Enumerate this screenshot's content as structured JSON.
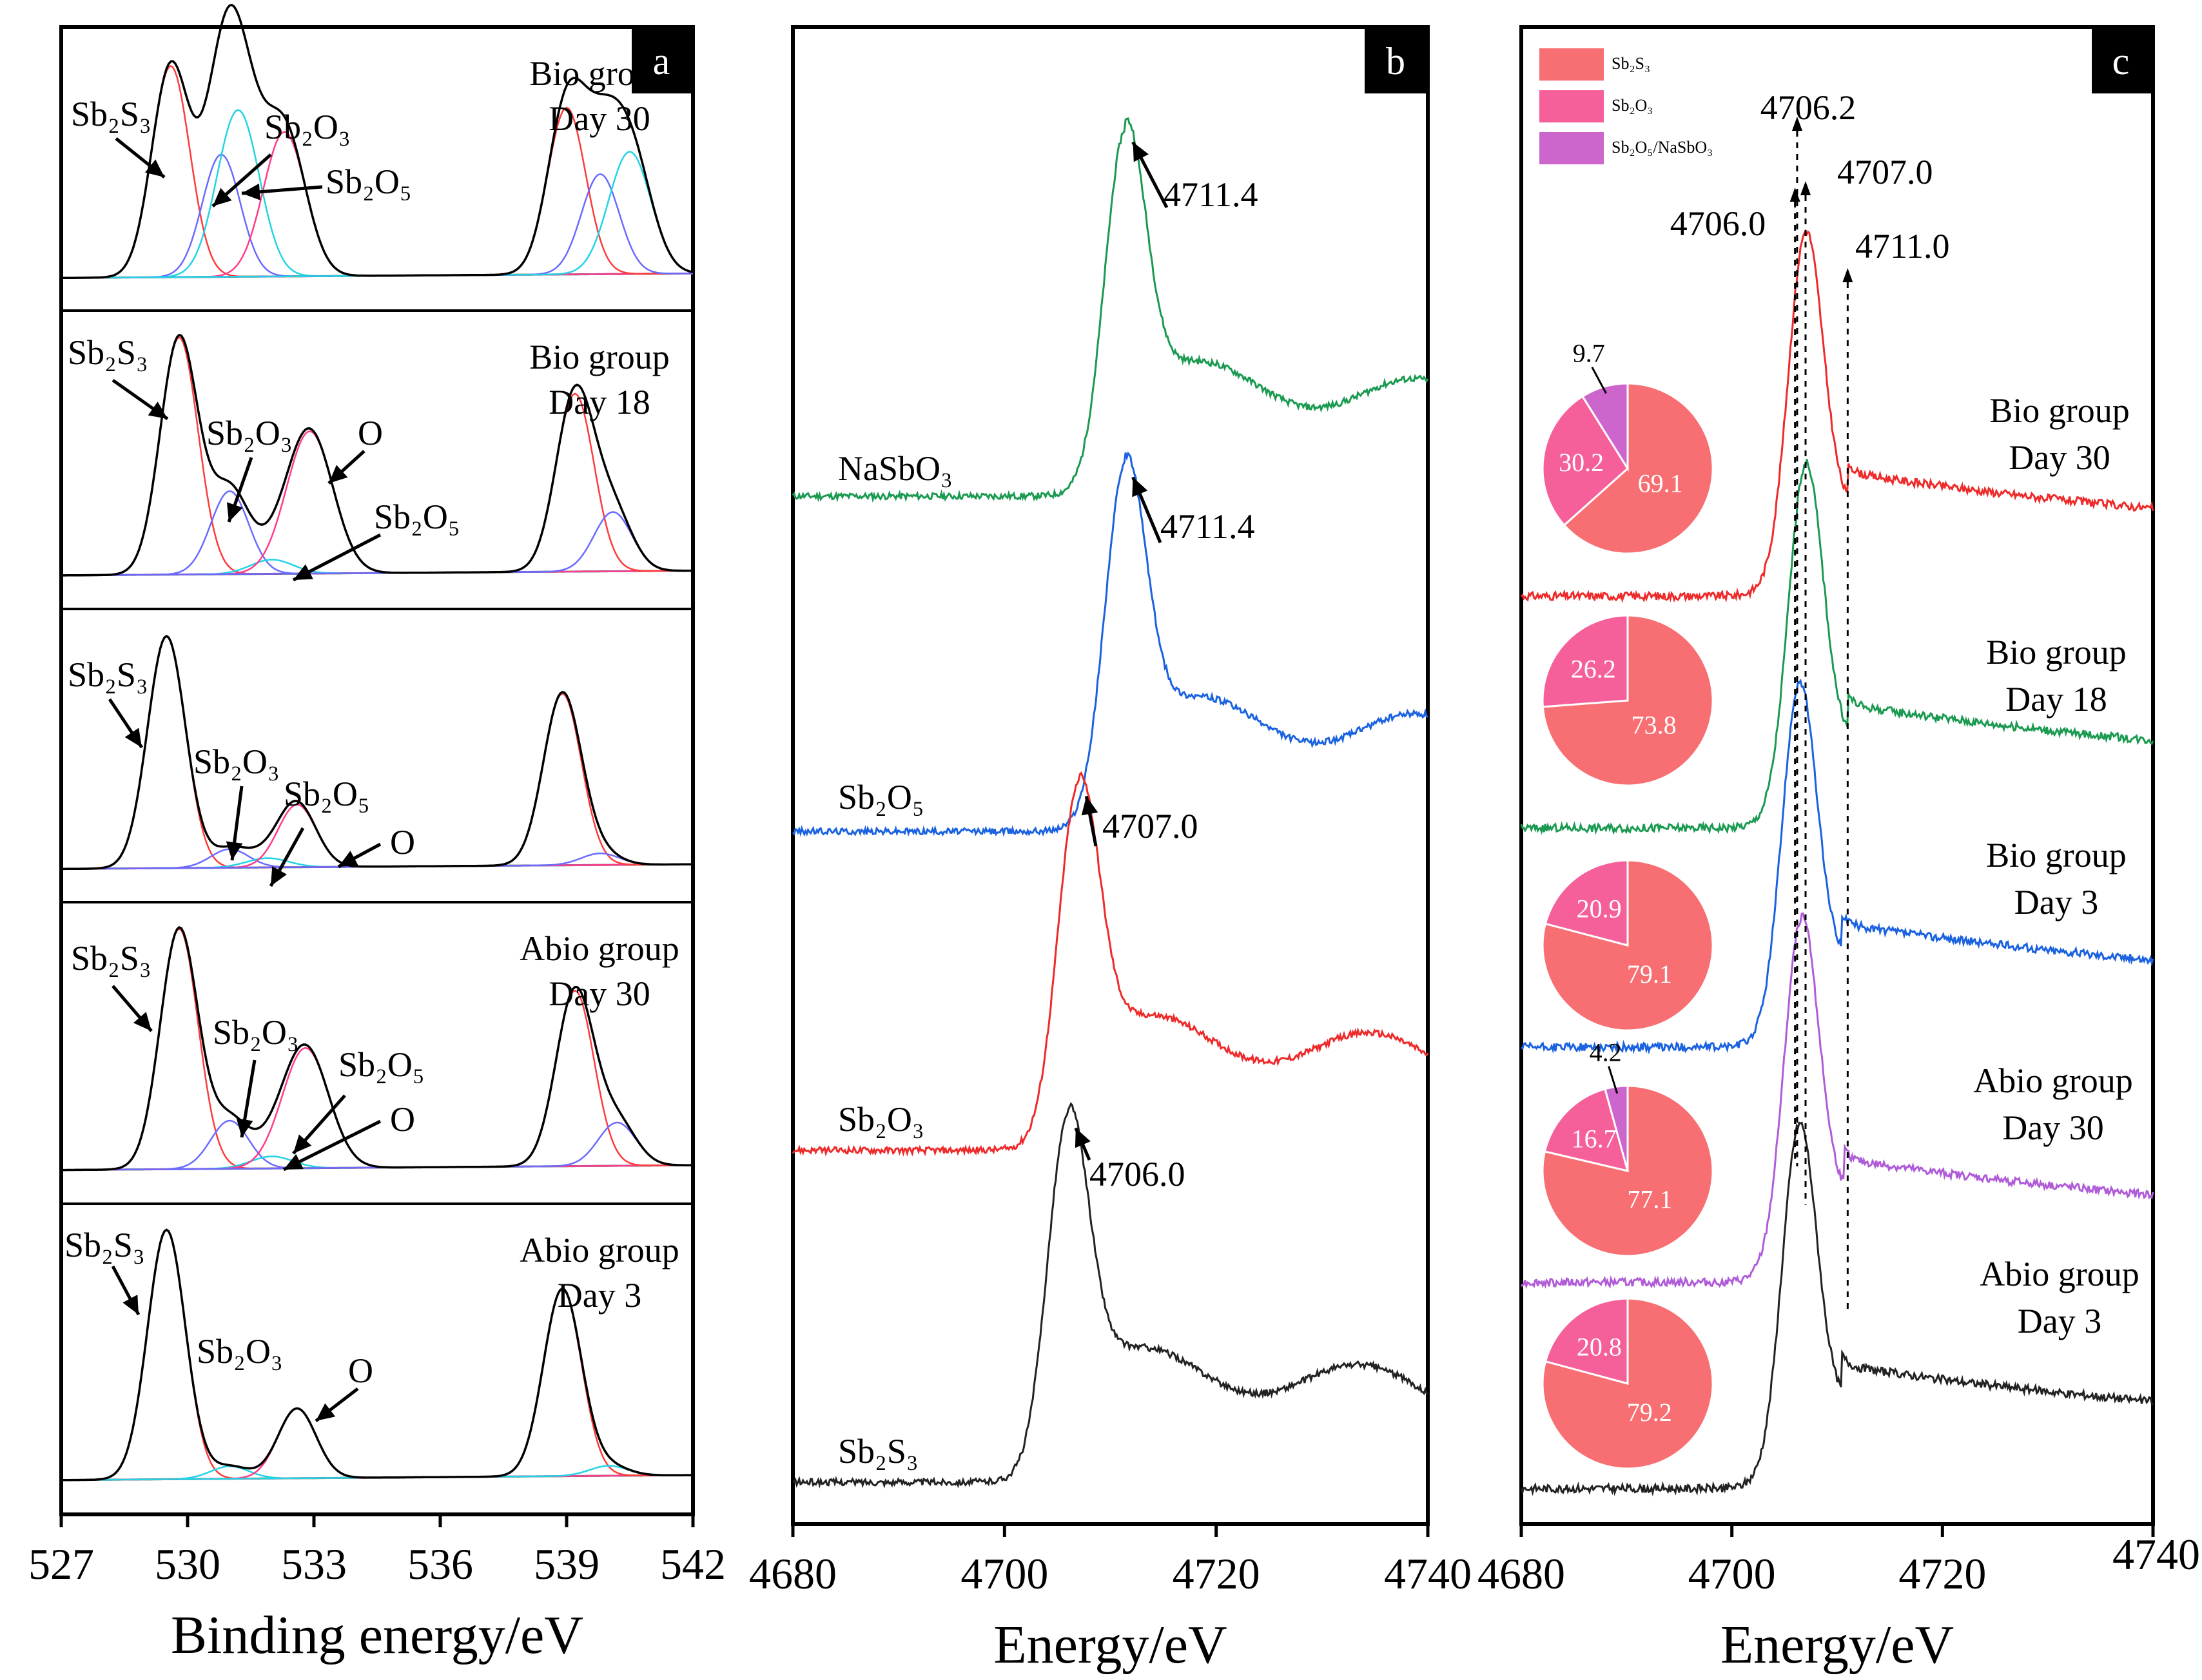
{
  "chart_data": [
    {
      "panel": "a",
      "type": "line",
      "xlabel": "Binding energy/eV",
      "xlim": [
        527,
        542
      ],
      "xticks": [
        "527",
        "530",
        "533",
        "536",
        "539",
        "542"
      ],
      "series": [
        {
          "name": "Bio group Day 30",
          "group_label": [
            "Bio group",
            "Day 30"
          ],
          "components": [
            {
              "name": "Sb2S3",
              "label": "Sb₂S₃",
              "center": 529.6,
              "amp": 0.95,
              "width": 0.45,
              "color": "#ff3b3b"
            },
            {
              "name": "Sb2O3",
              "label": "Sb₂O₃",
              "center": 530.8,
              "amp": 0.55,
              "width": 0.45,
              "color": "#6a6aff"
            },
            {
              "name": "Sb2O5",
              "label": "Sb₂O₅",
              "center": 531.2,
              "amp": 0.75,
              "width": 0.5,
              "color": "#22d3e6"
            },
            {
              "name": "O",
              "label": "O",
              "center": 532.3,
              "amp": 0.65,
              "width": 0.5,
              "color": "#ff3b8a"
            },
            {
              "name": "Sb2S3 3/2",
              "label": "",
              "center": 539.0,
              "amp": 0.75,
              "width": 0.45,
              "color": "#ff3b3b"
            },
            {
              "name": "Sb2O3 3/2",
              "label": "",
              "center": 539.8,
              "amp": 0.45,
              "width": 0.45,
              "color": "#6a6aff"
            },
            {
              "name": "Sb2O5 3/2",
              "label": "",
              "center": 540.5,
              "amp": 0.55,
              "width": 0.5,
              "color": "#22d3e6"
            }
          ],
          "annotations": [
            "Sb₂S₃",
            "Sb₂O₃",
            "Sb₂O₅"
          ]
        },
        {
          "name": "Bio group Day 18",
          "group_label": [
            "Bio group",
            "Day 18"
          ],
          "components": [
            {
              "name": "Sb2S3",
              "label": "Sb₂S₃",
              "center": 529.8,
              "amp": 1.0,
              "width": 0.45,
              "color": "#ff3b3b"
            },
            {
              "name": "Sb2O3",
              "label": "Sb₂O₃",
              "center": 531.0,
              "amp": 0.35,
              "width": 0.45,
              "color": "#6a6aff"
            },
            {
              "name": "Sb2O5",
              "label": "Sb₂O₅",
              "center": 532.0,
              "amp": 0.06,
              "width": 0.5,
              "color": "#22d3e6"
            },
            {
              "name": "O",
              "label": "O",
              "center": 532.9,
              "amp": 0.6,
              "width": 0.55,
              "color": "#ff3b8a"
            },
            {
              "name": "Sb2S3 3/2",
              "label": "",
              "center": 539.2,
              "amp": 0.75,
              "width": 0.45,
              "color": "#ff3b3b"
            },
            {
              "name": "Sb2O3 3/2",
              "label": "",
              "center": 540.1,
              "amp": 0.25,
              "width": 0.45,
              "color": "#6a6aff"
            }
          ],
          "annotations": [
            "Sb₂S₃",
            "Sb₂O₃",
            "O",
            "Sb₂O₅"
          ]
        },
        {
          "name": "Bio group Day 3",
          "group_label": [
            "",
            ""
          ],
          "components": [
            {
              "name": "Sb2S3",
              "label": "Sb₂S₃",
              "center": 529.5,
              "amp": 1.0,
              "width": 0.45,
              "color": "#ff3b3b"
            },
            {
              "name": "Sb2O3",
              "label": "Sb₂O₃",
              "center": 531.0,
              "amp": 0.08,
              "width": 0.45,
              "color": "#6a6aff"
            },
            {
              "name": "Sb2O5",
              "label": "Sb₂O₅",
              "center": 531.9,
              "amp": 0.04,
              "width": 0.5,
              "color": "#22d3e6"
            },
            {
              "name": "O",
              "label": "O",
              "center": 532.6,
              "amp": 0.27,
              "width": 0.45,
              "color": "#ff3b8a"
            },
            {
              "name": "Sb2S3 3/2",
              "label": "",
              "center": 538.9,
              "amp": 0.74,
              "width": 0.45,
              "color": "#ff3b3b"
            },
            {
              "name": "Sb2O3 3/2",
              "label": "",
              "center": 539.8,
              "amp": 0.05,
              "width": 0.45,
              "color": "#6a6aff"
            }
          ],
          "annotations": [
            "Sb₂S₃",
            "Sb₂O₃",
            "Sb₂O₅",
            "O"
          ]
        },
        {
          "name": "Abio group Day 30",
          "group_label": [
            "Abio group",
            "Day 30"
          ],
          "components": [
            {
              "name": "Sb2S3",
              "label": "Sb₂S₃",
              "center": 529.8,
              "amp": 1.0,
              "width": 0.45,
              "color": "#ff3b3b"
            },
            {
              "name": "Sb2O3",
              "label": "Sb₂O₃",
              "center": 531.0,
              "amp": 0.2,
              "width": 0.45,
              "color": "#6a6aff"
            },
            {
              "name": "Sb2O5",
              "label": "Sb₂O₅",
              "center": 532.0,
              "amp": 0.05,
              "width": 0.5,
              "color": "#22d3e6"
            },
            {
              "name": "O",
              "label": "O",
              "center": 532.8,
              "amp": 0.5,
              "width": 0.55,
              "color": "#ff3b8a"
            },
            {
              "name": "Sb2S3 3/2",
              "label": "",
              "center": 539.2,
              "amp": 0.73,
              "width": 0.45,
              "color": "#ff3b3b"
            },
            {
              "name": "Sb2O3 3/2",
              "label": "",
              "center": 540.2,
              "amp": 0.18,
              "width": 0.45,
              "color": "#6a6aff"
            }
          ],
          "annotations": [
            "Sb₂S₃",
            "Sb₂O₃",
            "Sb₂O₅",
            "O"
          ]
        },
        {
          "name": "Abio group Day 3",
          "group_label": [
            "Abio group",
            "Day 3"
          ],
          "components": [
            {
              "name": "Sb2S3",
              "label": "Sb₂S₃",
              "center": 529.5,
              "amp": 1.0,
              "width": 0.45,
              "color": "#ff3b3b"
            },
            {
              "name": "Sb2O3",
              "label": "Sb₂O₃",
              "center": 531.0,
              "amp": 0.05,
              "width": 0.45,
              "color": "#22d3e6"
            },
            {
              "name": "O",
              "label": "O",
              "center": 532.6,
              "amp": 0.28,
              "width": 0.45,
              "color": "#ff3b8a"
            },
            {
              "name": "Sb2S3 3/2",
              "label": "",
              "center": 538.9,
              "amp": 0.75,
              "width": 0.45,
              "color": "#ff3b3b"
            },
            {
              "name": "Sb2O3 3/2",
              "label": "",
              "center": 540.0,
              "amp": 0.04,
              "width": 0.45,
              "color": "#22d3e6"
            }
          ],
          "annotations": [
            "Sb₂S₃",
            "Sb₂O₃",
            "O"
          ]
        }
      ]
    },
    {
      "panel": "b",
      "type": "line",
      "xlabel": "Energy/eV",
      "xlim": [
        4680,
        4740
      ],
      "xticks": [
        "4680",
        "4700",
        "4720",
        "4740"
      ],
      "series": [
        {
          "name": "NaSbO3",
          "label": "NaSbO₃",
          "color": "#1a9a50",
          "peak_eV": 4711.4,
          "peak_label": "4711.4"
        },
        {
          "name": "Sb2O5",
          "label": "Sb₂O₅",
          "color": "#1a62e0",
          "peak_eV": 4711.4,
          "peak_label": "4711.4"
        },
        {
          "name": "Sb2O3",
          "label": "Sb₂O₃",
          "color": "#ee2a2a",
          "peak_eV": 4707.0,
          "peak_label": "4707.0"
        },
        {
          "name": "Sb2S3",
          "label": "Sb₂S₃",
          "color": "#222222",
          "peak_eV": 4706.0,
          "peak_label": "4706.0"
        }
      ]
    },
    {
      "panel": "c",
      "type": "line",
      "xlabel": "Energy/eV",
      "xlim": [
        4680,
        4740
      ],
      "xticks": [
        "4680",
        "4700",
        "4720",
        "4740"
      ],
      "reference_lines": [
        {
          "energy": 4706.0,
          "label": "4706.0"
        },
        {
          "energy": 4706.2,
          "label": "4706.2"
        },
        {
          "energy": 4707.0,
          "label": "4707.0"
        },
        {
          "energy": 4711.0,
          "label": "4711.0"
        }
      ],
      "legend": [
        {
          "name": "Sb2S3",
          "label": "Sb₂S₃",
          "color": "#f76f72"
        },
        {
          "name": "Sb2O3",
          "label": "Sb₂O₃",
          "color": "#f6609a"
        },
        {
          "name": "Sb2O5/NaSbO3",
          "label": "Sb₂O₅/NaSbO₃",
          "color": "#cc66cc"
        }
      ],
      "series": [
        {
          "name": "Bio group Day 30",
          "group_label": [
            "Bio group",
            "Day 30"
          ],
          "color": "#ee2a2a",
          "pie": [
            {
              "name": "Sb2S3",
              "value": 69.1,
              "label": "69.1"
            },
            {
              "name": "Sb2O3",
              "value": 30.2,
              "label": "30.2"
            },
            {
              "name": "Sb2O5/NaSbO3",
              "value": 9.7,
              "label": "9.7"
            }
          ]
        },
        {
          "name": "Bio group Day 18",
          "group_label": [
            "Bio group",
            "Day 18"
          ],
          "color": "#1a9a50",
          "pie": [
            {
              "name": "Sb2S3",
              "value": 73.8,
              "label": "73.8"
            },
            {
              "name": "Sb2O3",
              "value": 26.2,
              "label": "26.2"
            }
          ]
        },
        {
          "name": "Bio group Day 3",
          "group_label": [
            "Bio group",
            "Day 3"
          ],
          "color": "#1a62e0",
          "pie": [
            {
              "name": "Sb2S3",
              "value": 79.1,
              "label": "79.1"
            },
            {
              "name": "Sb2O3",
              "value": 20.9,
              "label": "20.9"
            }
          ]
        },
        {
          "name": "Abio group Day 30",
          "group_label": [
            "Abio group",
            "Day 30"
          ],
          "color": "#b05cd8",
          "pie": [
            {
              "name": "Sb2S3",
              "value": 77.1,
              "label": "77.1"
            },
            {
              "name": "Sb2O3",
              "value": 16.7,
              "label": "16.7"
            },
            {
              "name": "Sb2O5/NaSbO3",
              "value": 4.2,
              "label": "4.2"
            }
          ]
        },
        {
          "name": "Abio group Day 3",
          "group_label": [
            "Abio group",
            "Day 3"
          ],
          "color": "#222222",
          "pie": [
            {
              "name": "Sb2S3",
              "value": 79.2,
              "label": "79.2"
            },
            {
              "name": "Sb2O3",
              "value": 20.8,
              "label": "20.8"
            }
          ]
        }
      ]
    }
  ]
}
